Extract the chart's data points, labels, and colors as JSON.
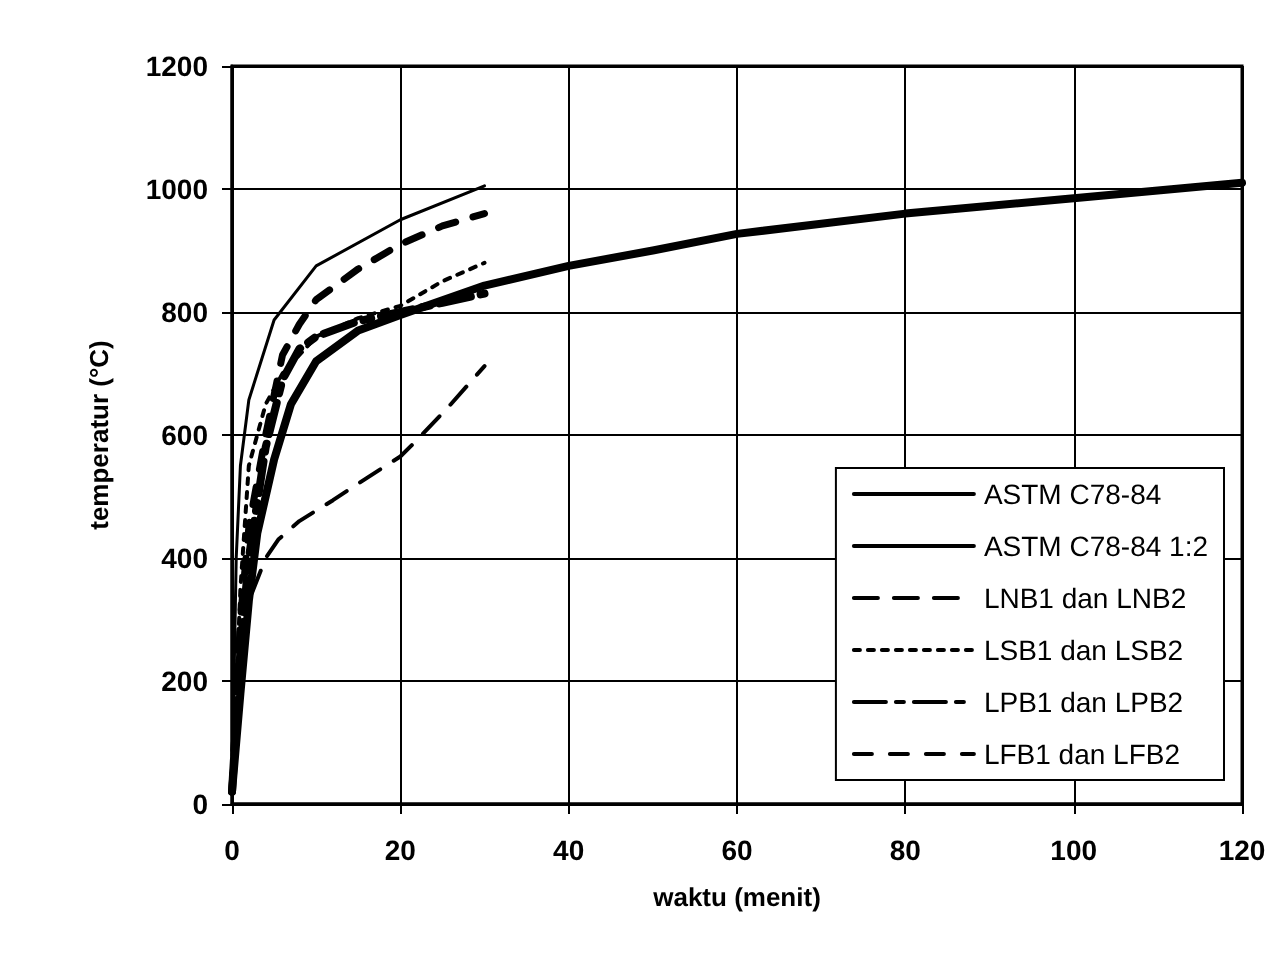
{
  "chart_data": {
    "type": "line",
    "xlabel": "waktu (menit)",
    "ylabel": "temperatur (°C)",
    "xlim": [
      0,
      120
    ],
    "xticks": [
      0,
      20,
      40,
      60,
      80,
      100,
      120
    ],
    "ylim": [
      0,
      1200
    ],
    "yticks": [
      0,
      200,
      400,
      600,
      800,
      1000,
      1200
    ],
    "grid": true,
    "legend": "bottom right",
    "marker": "none",
    "series": [
      {
        "name": "ASTM C78-84",
        "color": "#000000",
        "line_style": "solid",
        "x": [
          0,
          1,
          2,
          3,
          5,
          7,
          10,
          15,
          20,
          30,
          40,
          50,
          60,
          80,
          100,
          120
        ],
        "values": [
          20,
          180,
          330,
          440,
          560,
          650,
          720,
          770,
          795,
          843,
          875,
          900,
          927,
          960,
          985,
          1010
        ]
      },
      {
        "name": "ASTM C78-84 1:2",
        "color": "#000000",
        "line_style": "solid",
        "x": [
          0,
          0.5,
          1,
          2,
          5,
          10,
          20,
          30
        ],
        "values": [
          20,
          400,
          550,
          657,
          787,
          875,
          950,
          1005
        ]
      },
      {
        "name": "LNB1 dan LNB2",
        "color": "#000000",
        "line_style": "dashed",
        "x": [
          0,
          1,
          2,
          4,
          5.5,
          8,
          12,
          16,
          20,
          22,
          26,
          30
        ],
        "values": [
          20,
          200,
          330,
          400,
          430,
          460,
          494,
          530,
          565,
          592,
          650,
          712
        ]
      },
      {
        "name": "LSB1 dan LSB2",
        "color": "#000000",
        "line_style": "dotted",
        "x": [
          0,
          1,
          2,
          4,
          6,
          10,
          15,
          20,
          25,
          30
        ],
        "values": [
          20,
          350,
          550,
          650,
          700,
          760,
          790,
          810,
          850,
          880
        ]
      },
      {
        "name": "LPB1 dan LPB2",
        "color": "#000000",
        "line_style": "dashed",
        "x": [
          0,
          1,
          2,
          4,
          6,
          8,
          10,
          15,
          20,
          25,
          30
        ],
        "values": [
          20,
          250,
          400,
          580,
          690,
          740,
          760,
          785,
          800,
          815,
          830
        ]
      },
      {
        "name": "LFB1 dan LFB2",
        "color": "#000000",
        "line_style": "dashed",
        "x": [
          0,
          1,
          2,
          4,
          6,
          8,
          10,
          15,
          20,
          25,
          30
        ],
        "values": [
          20,
          300,
          450,
          600,
          730,
          780,
          820,
          870,
          910,
          940,
          960
        ]
      }
    ]
  }
}
